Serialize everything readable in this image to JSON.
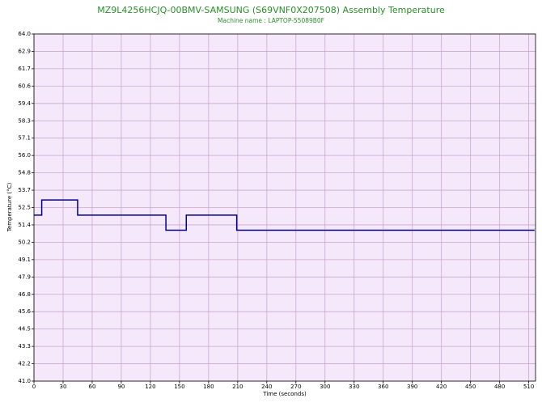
{
  "chart_data": {
    "type": "line",
    "title": "MZ9L4256HCJQ-00BMV-SAMSUNG (S69VNF0X207508) Assembly Temperature",
    "subtitle": "Machine name : LAPTOP-55089B0F",
    "x_label": "Time (seconds)",
    "y_label": "Temperature (°C)",
    "x": [
      0,
      8,
      8,
      45,
      45,
      136,
      136,
      157,
      157,
      209,
      209,
      516
    ],
    "series": [
      {
        "name": "Temperature",
        "color": "#000080",
        "values": [
          52.0,
          52.0,
          53.0,
          53.0,
          52.0,
          52.0,
          51.0,
          51.0,
          52.0,
          52.0,
          51.0,
          51.0
        ]
      }
    ],
    "xlim": [
      0,
      517
    ],
    "xticks": [
      0,
      30,
      60,
      90,
      120,
      150,
      180,
      210,
      240,
      270,
      300,
      330,
      360,
      390,
      420,
      450,
      480,
      510
    ],
    "ylim": [
      41.0,
      64.0
    ],
    "yticks": [
      {
        "value": 41.0,
        "label": "41.0"
      },
      {
        "value": 42.15,
        "label": "42.2"
      },
      {
        "value": 43.3,
        "label": "43.3"
      },
      {
        "value": 44.45,
        "label": "44.5"
      },
      {
        "value": 45.6,
        "label": "45.6"
      },
      {
        "value": 46.75,
        "label": "46.8"
      },
      {
        "value": 47.9,
        "label": "47.9"
      },
      {
        "value": 49.05,
        "label": "49.1"
      },
      {
        "value": 50.2,
        "label": "50.2"
      },
      {
        "value": 51.35,
        "label": "51.4"
      },
      {
        "value": 52.5,
        "label": "52.5"
      },
      {
        "value": 53.65,
        "label": "53.7"
      },
      {
        "value": 54.8,
        "label": "54.8"
      },
      {
        "value": 55.95,
        "label": "56.0"
      },
      {
        "value": 57.1,
        "label": "57.1"
      },
      {
        "value": 58.25,
        "label": "58.3"
      },
      {
        "value": 59.4,
        "label": "59.4"
      },
      {
        "value": 60.55,
        "label": "60.6"
      },
      {
        "value": 61.7,
        "label": "61.7"
      },
      {
        "value": 62.85,
        "label": "62.9"
      },
      {
        "value": 64.0,
        "label": "64.0"
      }
    ],
    "grid": true,
    "background": "#f6e8fb"
  }
}
